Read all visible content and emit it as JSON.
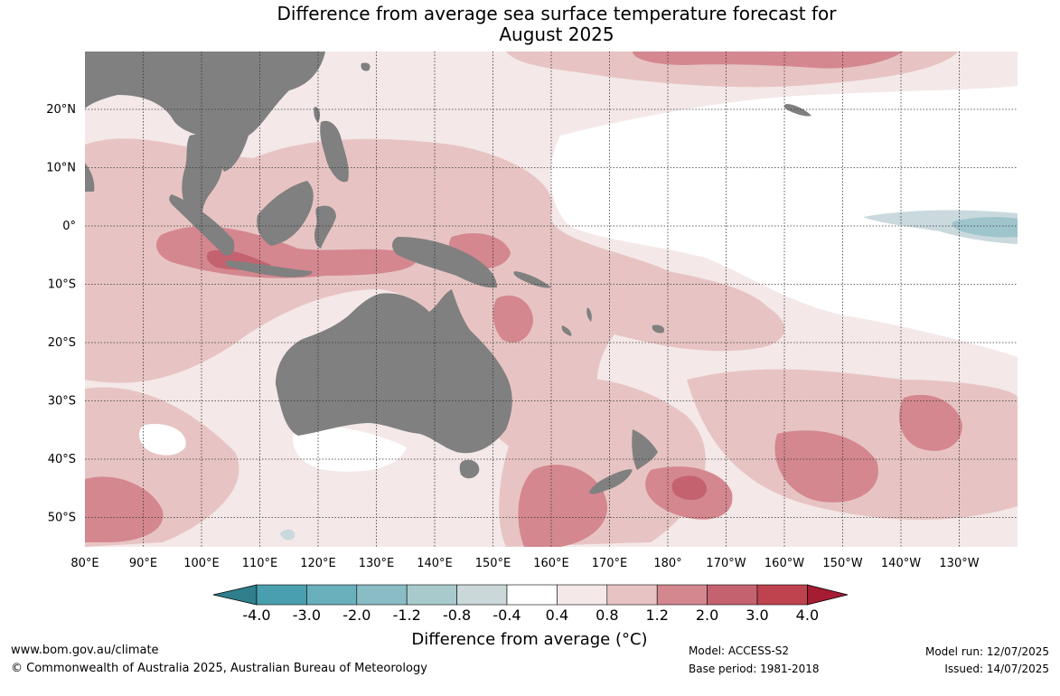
{
  "title": {
    "line1": "Difference from average sea surface temperature forecast for",
    "line2": "August 2025"
  },
  "map": {
    "lon_labels": [
      "80°E",
      "90°E",
      "100°E",
      "110°E",
      "120°E",
      "130°E",
      "140°E",
      "150°E",
      "160°E",
      "170°E",
      "180°",
      "170°W",
      "160°W",
      "150°W",
      "140°W",
      "130°W"
    ],
    "lat_labels": [
      "20°N",
      "10°N",
      "0°",
      "10°S",
      "20°S",
      "30°S",
      "40°S",
      "50°S"
    ],
    "colors": {
      "land": "#808080",
      "ocean_neutral": "#ffffff",
      "warm_light": "#f4e8e8",
      "warm_mid": "#e7c4c3",
      "warm_strong": "#d4878f",
      "warm_deep": "#c4636f",
      "cool_light": "#c9d9dd",
      "cool_mid": "#9ec4cc"
    }
  },
  "colorbar": {
    "tick_labels": [
      "-4.0",
      "-3.0",
      "-2.0",
      "-1.2",
      "-0.8",
      "-0.4",
      "0.4",
      "0.8",
      "1.2",
      "2.0",
      "3.0",
      "4.0"
    ],
    "colors": [
      "#4a9fae",
      "#6aafbc",
      "#89bcc4",
      "#a8cacd",
      "#cad8da",
      "#ffffff",
      "#f4e8e8",
      "#e7c4c3",
      "#d4878f",
      "#c4636f",
      "#be434f"
    ],
    "under_color": "#2f7f8c",
    "over_color": "#a51c33",
    "label": "Difference from average (",
    "label_unit": "°C",
    "label_close": ")"
  },
  "footer": {
    "url": "www.bom.gov.au/climate",
    "copyright": "© Commonwealth of Australia 2025, Australian Bureau of Meteorology",
    "model": "Model: ACCESS-S2",
    "base_period": "Base period: 1981-2018",
    "model_run": "Model run: 12/07/2025",
    "issued": "Issued: 14/07/2025"
  }
}
